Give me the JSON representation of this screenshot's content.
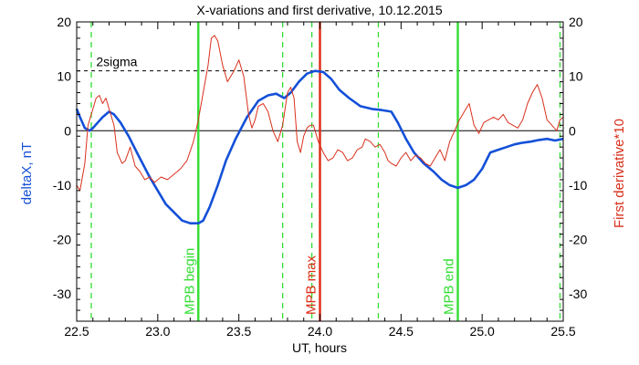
{
  "chart_data": {
    "type": "line",
    "title": "X-variations and first derivative, 10.12.2015",
    "xlabel": "UT, hours",
    "ylabel_left": "deltaX, nT",
    "ylabel_right": "First derivative*10",
    "xlim": [
      22.5,
      25.5
    ],
    "ylim": [
      -35,
      20
    ],
    "xticks": [
      22.5,
      23.0,
      23.5,
      24.0,
      24.5,
      25.0,
      25.5
    ],
    "xtick_labels": [
      "22.5",
      "23.0",
      "23.5",
      "24.0",
      "24.5",
      "25.0",
      "25.5"
    ],
    "yticks": [
      -30,
      -20,
      -10,
      0,
      10,
      20
    ],
    "ytick_labels": [
      "-30",
      "-20",
      "-10",
      "0",
      "10",
      "20"
    ],
    "colors": {
      "deltaX": "#1450d8",
      "derivative": "#d8301c",
      "mpb": "#33dd33",
      "mpb_max": "#dd2a14",
      "axis": "#000000"
    },
    "sigma": {
      "label": "2sigma",
      "value": 11
    },
    "mpb_lines": [
      {
        "x": 23.25,
        "label": "MPB begin",
        "kind": "begin"
      },
      {
        "x": 24.0,
        "label": "MPB max",
        "kind": "max"
      },
      {
        "x": 24.85,
        "label": "MPB end",
        "kind": "end"
      }
    ],
    "dashed_markers": [
      22.59,
      23.77,
      23.95,
      24.36,
      25.48
    ],
    "series": [
      {
        "name": "deltaX",
        "axis": "left",
        "x": [
          22.5,
          22.52,
          22.55,
          22.58,
          22.6,
          22.63,
          22.66,
          22.7,
          22.73,
          22.77,
          22.82,
          22.88,
          22.95,
          23.0,
          23.05,
          23.1,
          23.15,
          23.2,
          23.25,
          23.28,
          23.32,
          23.37,
          23.42,
          23.48,
          23.55,
          23.62,
          23.68,
          23.73,
          23.78,
          23.82,
          23.87,
          23.92,
          23.97,
          24.02,
          24.07,
          24.12,
          24.18,
          24.25,
          24.32,
          24.38,
          24.44,
          24.48,
          24.53,
          24.58,
          24.64,
          24.7,
          24.75,
          24.8,
          24.85,
          24.9,
          24.95,
          25.0,
          25.05,
          25.1,
          25.15,
          25.2,
          25.25,
          25.3,
          25.35,
          25.4,
          25.45,
          25.5
        ],
        "values": [
          4.0,
          2.5,
          0.5,
          0.0,
          0.5,
          1.5,
          2.5,
          3.5,
          3.0,
          1.5,
          -1.0,
          -4.5,
          -8.5,
          -11.0,
          -13.5,
          -15.0,
          -16.5,
          -17.0,
          -17.0,
          -16.5,
          -14.0,
          -10.0,
          -5.5,
          -1.5,
          2.5,
          5.5,
          6.5,
          6.8,
          6.0,
          7.0,
          9.0,
          10.5,
          11.0,
          10.8,
          9.5,
          7.5,
          6.0,
          4.5,
          4.0,
          3.8,
          3.5,
          1.5,
          -1.5,
          -4.0,
          -6.0,
          -7.5,
          -9.0,
          -10.0,
          -10.5,
          -10.0,
          -9.0,
          -7.0,
          -4.0,
          -3.5,
          -3.0,
          -2.5,
          -2.2,
          -2.0,
          -1.7,
          -1.5,
          -1.8,
          -1.5
        ]
      },
      {
        "name": "First derivative*10",
        "axis": "right",
        "x": [
          22.5,
          22.52,
          22.55,
          22.57,
          22.6,
          22.62,
          22.64,
          22.66,
          22.68,
          22.7,
          22.73,
          22.75,
          22.78,
          22.8,
          22.83,
          22.86,
          22.89,
          22.92,
          22.95,
          22.98,
          23.02,
          23.06,
          23.1,
          23.14,
          23.18,
          23.22,
          23.25,
          23.28,
          23.31,
          23.33,
          23.35,
          23.37,
          23.4,
          23.43,
          23.47,
          23.5,
          23.53,
          23.56,
          23.58,
          23.6,
          23.62,
          23.65,
          23.68,
          23.71,
          23.74,
          23.77,
          23.8,
          23.82,
          23.84,
          23.86,
          23.88,
          23.9,
          23.92,
          23.94,
          23.96,
          23.99,
          24.02,
          24.05,
          24.08,
          24.11,
          24.14,
          24.17,
          24.2,
          24.23,
          24.26,
          24.28,
          24.31,
          24.34,
          24.37,
          24.4,
          24.42,
          24.44,
          24.47,
          24.5,
          24.53,
          24.56,
          24.59,
          24.62,
          24.65,
          24.68,
          24.71,
          24.74,
          24.77,
          24.8,
          24.83,
          24.86,
          24.89,
          24.92,
          24.95,
          24.98,
          25.01,
          25.04,
          25.07,
          25.1,
          25.13,
          25.16,
          25.19,
          25.22,
          25.25,
          25.28,
          25.31,
          25.34,
          25.37,
          25.4,
          25.43,
          25.46,
          25.48,
          25.5
        ],
        "values": [
          -10.0,
          -11.0,
          -6.0,
          1.0,
          4.0,
          6.0,
          6.5,
          5.0,
          6.0,
          4.0,
          1.0,
          -4.0,
          -6.0,
          -5.5,
          -3.0,
          -6.5,
          -7.5,
          -9.0,
          -8.5,
          -9.5,
          -8.5,
          -9.0,
          -8.0,
          -7.0,
          -5.5,
          -2.0,
          2.0,
          7.0,
          12.0,
          17.0,
          17.5,
          16.5,
          12.0,
          9.0,
          11.0,
          13.0,
          10.0,
          3.0,
          0.5,
          2.0,
          4.5,
          5.0,
          3.5,
          0.0,
          -2.0,
          1.0,
          7.0,
          8.0,
          6.0,
          -2.0,
          -4.0,
          -1.0,
          0.5,
          1.0,
          1.0,
          -2.0,
          -4.0,
          -5.5,
          -5.0,
          -3.5,
          -4.0,
          -5.5,
          -5.0,
          -3.5,
          -3.0,
          -1.5,
          -2.0,
          -3.0,
          -2.5,
          -4.0,
          -5.5,
          -6.0,
          -6.5,
          -5.0,
          -4.0,
          -5.5,
          -4.5,
          -5.0,
          -6.0,
          -6.5,
          -5.0,
          -3.5,
          -5.5,
          -2.0,
          0.0,
          2.0,
          3.5,
          5.0,
          1.0,
          -0.5,
          1.5,
          2.0,
          2.5,
          2.0,
          3.0,
          1.5,
          1.0,
          0.5,
          2.0,
          5.0,
          7.0,
          8.5,
          6.0,
          2.0,
          1.0,
          0.0,
          2.0,
          2.5
        ]
      }
    ],
    "grid": false,
    "legend": "none"
  }
}
